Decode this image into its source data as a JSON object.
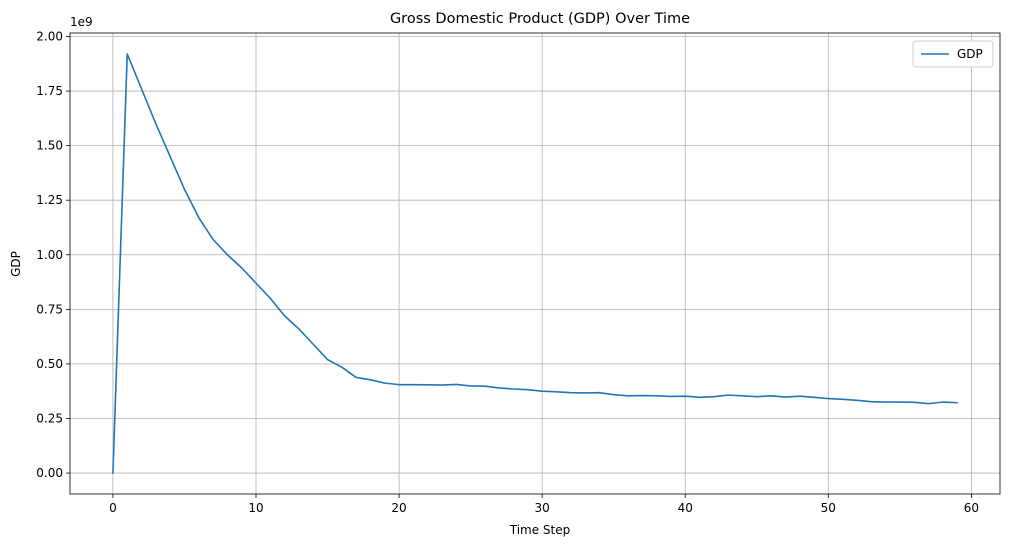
{
  "chart_data": {
    "type": "line",
    "title": "Gross Domestic Product (GDP) Over Time",
    "xlabel": "Time Step",
    "ylabel": "GDP",
    "y_scale_factor": "1e9",
    "xlim": [
      -3,
      62
    ],
    "ylim": [
      -0.096,
      2.016
    ],
    "xticks": [
      0,
      10,
      20,
      30,
      40,
      50,
      60
    ],
    "xtick_labels": [
      "0",
      "10",
      "20",
      "30",
      "40",
      "50",
      "60"
    ],
    "yticks": [
      0,
      0.25,
      0.5,
      0.75,
      1.0,
      1.25,
      1.5,
      1.75,
      2.0
    ],
    "ytick_labels": [
      "0.00",
      "0.25",
      "0.50",
      "0.75",
      "1.00",
      "1.25",
      "1.50",
      "1.75",
      "2.00"
    ],
    "grid": true,
    "legend_position": "top-right",
    "series": [
      {
        "name": "GDP",
        "color": "#1f77b4",
        "x": [
          0,
          1,
          2,
          3,
          4,
          5,
          6,
          7,
          8,
          9,
          10,
          11,
          12,
          13,
          14,
          15,
          16,
          17,
          18,
          19,
          20,
          21,
          22,
          23,
          24,
          25,
          26,
          27,
          28,
          29,
          30,
          31,
          32,
          33,
          34,
          35,
          36,
          37,
          38,
          39,
          40,
          41,
          42,
          43,
          44,
          45,
          46,
          47,
          48,
          49,
          50,
          51,
          52,
          53,
          54,
          55,
          56,
          57,
          58,
          59
        ],
        "values": [
          0.0,
          1.92,
          1.76,
          1.6,
          1.45,
          1.3,
          1.17,
          1.07,
          1.0,
          0.94,
          0.87,
          0.8,
          0.72,
          0.66,
          0.59,
          0.52,
          0.485,
          0.438,
          0.427,
          0.412,
          0.405,
          0.405,
          0.404,
          0.403,
          0.406,
          0.399,
          0.398,
          0.39,
          0.385,
          0.382,
          0.375,
          0.372,
          0.368,
          0.367,
          0.368,
          0.359,
          0.354,
          0.355,
          0.354,
          0.351,
          0.352,
          0.347,
          0.35,
          0.357,
          0.354,
          0.35,
          0.354,
          0.348,
          0.352,
          0.347,
          0.341,
          0.338,
          0.333,
          0.327,
          0.325,
          0.325,
          0.324,
          0.318,
          0.325,
          0.322
        ]
      }
    ]
  }
}
